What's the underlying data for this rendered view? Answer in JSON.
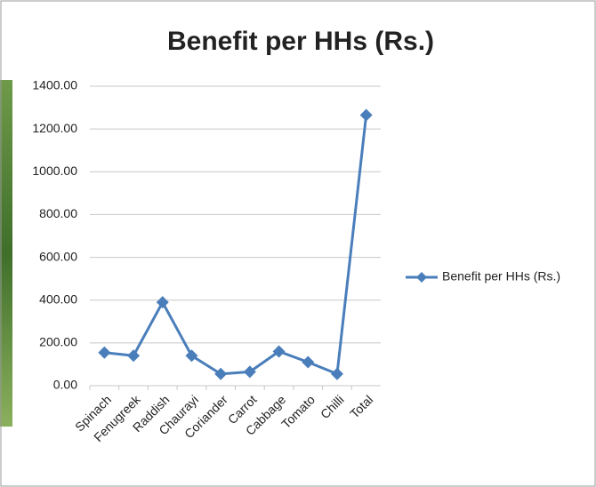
{
  "chart_data": {
    "type": "line",
    "title": "Benefit per HHs (Rs.)",
    "categories": [
      "Spinach",
      "Fenugreek",
      "Raddish",
      "Chaurayi",
      "Coriander",
      "Carrot",
      "Cabbage",
      "Tomato",
      "Chilli",
      "Total"
    ],
    "series": [
      {
        "name": "Benefit per HHs (Rs.)",
        "color": "#4a7ebb",
        "values": [
          155,
          140,
          390,
          140,
          55,
          65,
          160,
          110,
          55,
          1265
        ]
      }
    ],
    "ylim": [
      0,
      1400
    ],
    "yticks": [
      {
        "value": 0,
        "label": "0.00"
      },
      {
        "value": 200,
        "label": "200.00"
      },
      {
        "value": 400,
        "label": "400.00"
      },
      {
        "value": 600,
        "label": "600.00"
      },
      {
        "value": 800,
        "label": "800.00"
      },
      {
        "value": 1000,
        "label": "1000.00"
      },
      {
        "value": 1200,
        "label": "1200.00"
      },
      {
        "value": 1400,
        "label": "1400.00"
      }
    ],
    "grid": true,
    "legend": "right"
  }
}
